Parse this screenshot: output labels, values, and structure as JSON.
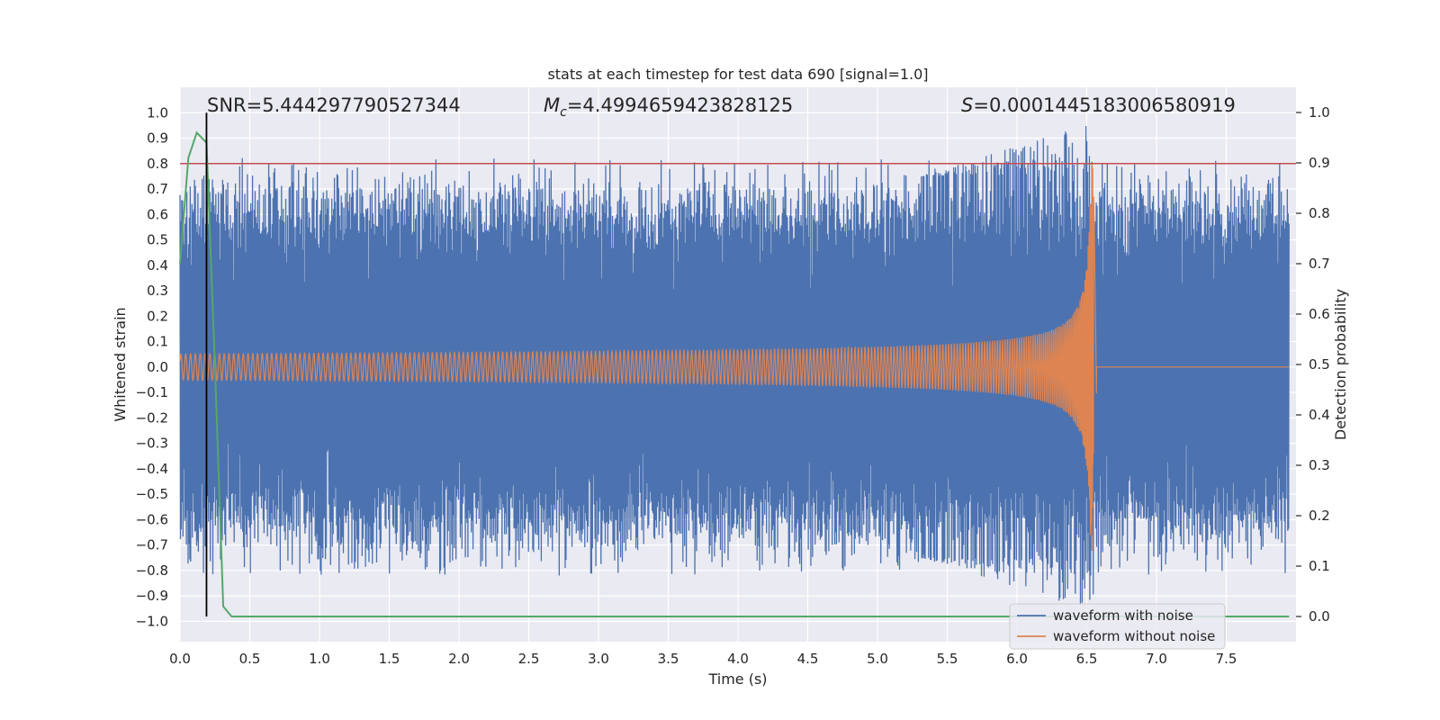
{
  "chart_data": {
    "type": "line",
    "title": "stats at each timestep for test data 690 [signal=1.0]",
    "xlabel": "Time (s)",
    "ylabel": "Whitened strain",
    "ylabel_right": "Detection probability",
    "xlim": [
      0.0,
      8.0
    ],
    "ylim": [
      -1.08,
      1.1
    ],
    "ylim_right": [
      -0.05,
      1.05
    ],
    "x_ticks": [
      0.0,
      0.5,
      1.0,
      1.5,
      2.0,
      2.5,
      3.0,
      3.5,
      4.0,
      4.5,
      5.0,
      5.5,
      6.0,
      6.5,
      7.0,
      7.5
    ],
    "x_tick_labels": [
      "0.0",
      "0.5",
      "1.0",
      "1.5",
      "2.0",
      "2.5",
      "3.0",
      "3.5",
      "4.0",
      "4.5",
      "5.0",
      "5.5",
      "6.0",
      "6.5",
      "7.0",
      "7.5"
    ],
    "y_ticks": [
      1.0,
      0.9,
      0.8,
      0.7,
      0.6,
      0.5,
      0.4,
      0.3,
      0.2,
      0.1,
      0.0,
      -0.1,
      -0.2,
      -0.3,
      -0.4,
      -0.5,
      -0.6,
      -0.7,
      -0.8,
      -0.9,
      -1.0
    ],
    "y_tick_labels": [
      "1.0",
      "0.9",
      "0.8",
      "0.7",
      "0.6",
      "0.5",
      "0.4",
      "0.3",
      "0.2",
      "0.1",
      "0.0",
      "−0.1",
      "−0.2",
      "−0.3",
      "−0.4",
      "−0.5",
      "−0.6",
      "−0.7",
      "−0.8",
      "−0.9",
      "−1.0"
    ],
    "y_right_ticks": [
      1.0,
      0.9,
      0.8,
      0.7,
      0.6,
      0.5,
      0.4,
      0.3,
      0.2,
      0.1,
      0.0
    ],
    "y_right_tick_labels": [
      "1.0",
      "0.9",
      "0.8",
      "0.7",
      "0.6",
      "0.5",
      "0.4",
      "0.3",
      "0.2",
      "0.1",
      "0.0"
    ],
    "annotations": {
      "snr": "SNR=5.444297790527344",
      "mc_symbol": "M",
      "mc_subscript": "c",
      "mc_value": "=4.4994659423828125",
      "s_symbol": "S",
      "s_value": "=0.0001445183006580919"
    },
    "threshold_left": 0.8,
    "detection_time": 0.19,
    "merger_time": 6.55,
    "series": [
      {
        "name": "waveform with noise",
        "color": "#4c72b0",
        "description": "noisy whitened strain, envelope approx ±0.7 with spikes to ±0.95 near merger"
      },
      {
        "name": "waveform without noise",
        "color": "#dd8452",
        "description": "clean chirp, amplitude 0.05 at t=0 growing to ~0.8 at t≈6.55 s, zero afterwards"
      },
      {
        "name": "detection probability",
        "color": "#55a868",
        "x": [
          0.0,
          0.06,
          0.12,
          0.19,
          0.25,
          0.31,
          0.37,
          0.44,
          7.95
        ],
        "y": [
          0.7,
          0.91,
          0.96,
          0.94,
          0.5,
          0.02,
          0.0,
          0.0,
          0.0
        ]
      }
    ],
    "threshold_color": "#c44e52",
    "legend_position": "lower-right"
  }
}
